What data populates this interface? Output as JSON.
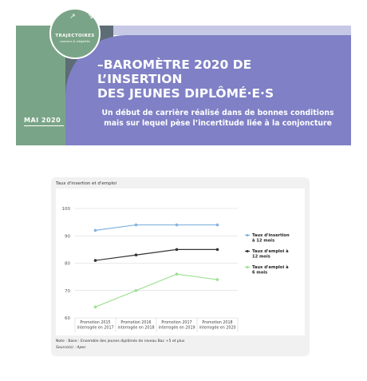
{
  "banner": {
    "logo_title": "TRAJECTOIRES",
    "logo_subtitle": "parcours & inégalités",
    "date": "MAI 2020",
    "title": "–BAROMÈTRE 2020 DE L’INSERTION\nDES JEUNES DIPLÔMÉ·E·S",
    "subtitle": "Un début de carrière réalisé dans de bonnes conditions\nmais sur lequel pèse l’incertitude liée à la conjoncture",
    "colors": {
      "green": "#7aa487",
      "purple": "#7f80c5",
      "grey": "#5d6c75"
    }
  },
  "chart_data": {
    "type": "line",
    "title": "Taux d'insertion et d'emploi",
    "categories": [
      [
        "Promotion 2015",
        "interrogée en 2017"
      ],
      [
        "Promotion 2016",
        "interrogée en 2018"
      ],
      [
        "Promotion 2017",
        "interrogée en 2019"
      ],
      [
        "Promotion 2018",
        "interrogée en 2020"
      ]
    ],
    "yticks": [
      60,
      70,
      80,
      90,
      100
    ],
    "ylim": [
      60,
      100
    ],
    "grid": true,
    "legend_position": "right",
    "series": [
      {
        "name": "Taux d'insertion à 12 mois",
        "legend_lines": [
          "Taux d'insertion",
          "à 12 mois"
        ],
        "color": "#82b3e0",
        "values": [
          92,
          94,
          94,
          94
        ]
      },
      {
        "name": "Taux d'emploi à 12 mois",
        "legend_lines": [
          "Taux d'emploi à",
          "12 mois"
        ],
        "color": "#333333",
        "values": [
          81,
          83,
          85,
          85
        ]
      },
      {
        "name": "Taux d'emploi à 6 mois",
        "legend_lines": [
          "Taux d'emploi à",
          "6 mois"
        ],
        "color": "#9be08e",
        "values": [
          64,
          70,
          76,
          74
        ]
      }
    ],
    "note": "Note : Base : Ensemble des jeunes diplômés de niveau Bac +5 et plus",
    "source": "Source(s) : Apec"
  }
}
